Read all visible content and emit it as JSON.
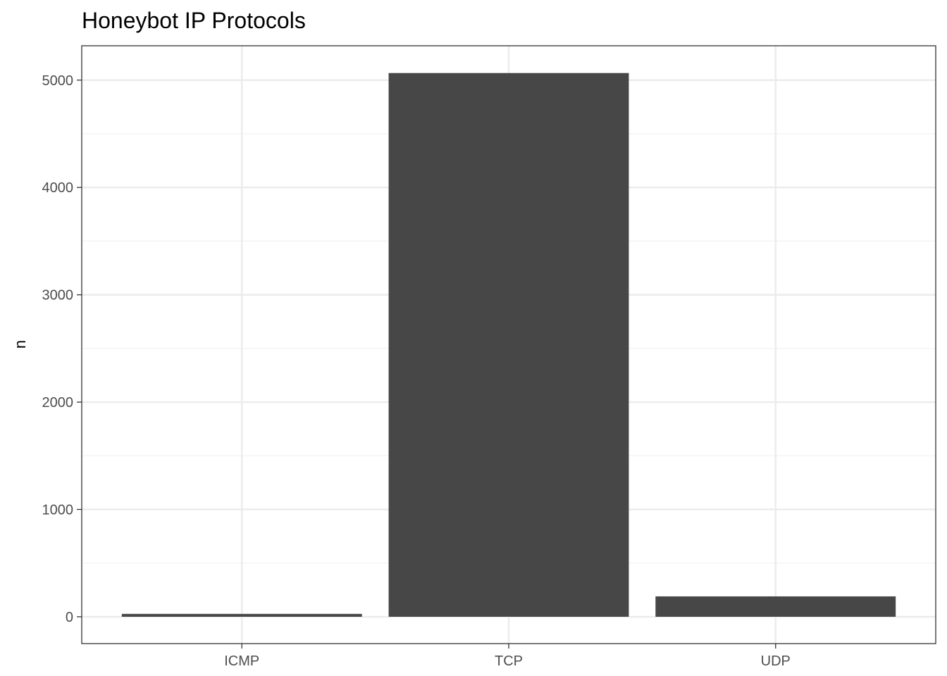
{
  "chart_data": {
    "type": "bar",
    "title": "Honeybot IP Protocols",
    "xlabel": "",
    "ylabel": "n",
    "categories": [
      "ICMP",
      "TCP",
      "UDP"
    ],
    "values": [
      27,
      5066,
      190
    ],
    "ylim": [
      -250,
      5320
    ],
    "yticks": [
      0,
      1000,
      2000,
      3000,
      4000,
      5000
    ],
    "ytick_labels": [
      "0",
      "1000",
      "2000",
      "3000",
      "4000",
      "5000"
    ],
    "grid": true,
    "legend": "none",
    "bar_color": "#474747",
    "grid_major_color": "#ebebeb",
    "grid_minor_color": "#f2f2f2",
    "panel_border_color": "#333333"
  }
}
